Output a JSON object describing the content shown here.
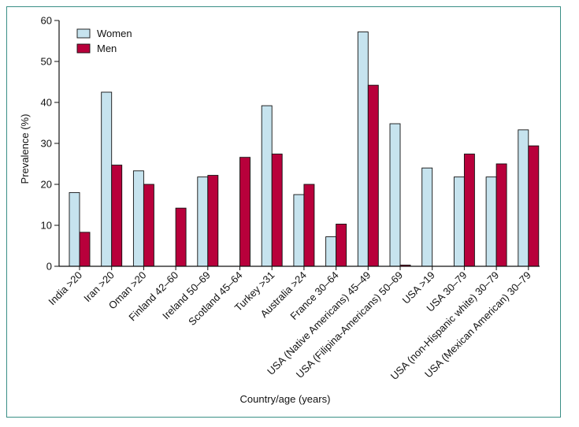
{
  "chart_data": {
    "type": "bar",
    "xlabel": "Country/age (years)",
    "ylabel": "Prevalence (%)",
    "ylim": [
      0,
      60
    ],
    "yticks": [
      0,
      10,
      20,
      30,
      40,
      50,
      60
    ],
    "categories": [
      "India >20",
      "Iran >20",
      "Oman >20",
      "Finland 42–60",
      "Ireland 50–69",
      "Scotland 45–64",
      "Turkey >31",
      "Australia >24",
      "France 30–64",
      "USA (Native Americans) 45–49",
      "USA (Filipina-Americans) 50–69",
      "USA >19",
      "USA 30–79",
      "USA (non-Hispanic white) 30–79",
      "USA (Mexican American) 30–79"
    ],
    "series": [
      {
        "name": "Women",
        "color": "#c6e3ee",
        "values": [
          18,
          42.5,
          23.3,
          null,
          21.8,
          null,
          39.2,
          17.5,
          7.2,
          57.2,
          34.8,
          24,
          21.8,
          21.8,
          33.3
        ]
      },
      {
        "name": "Men",
        "color": "#b8003b",
        "values": [
          8.3,
          24.7,
          20,
          14.2,
          22.2,
          26.6,
          27.4,
          20,
          10.3,
          44.2,
          0.3,
          null,
          27.4,
          25,
          29.4
        ]
      }
    ],
    "legend": "top-left",
    "grid": false
  }
}
